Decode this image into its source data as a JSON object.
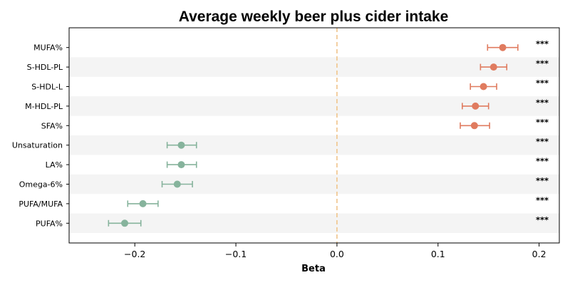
{
  "chart_data": {
    "type": "forest",
    "title": "Average weekly beer plus cider intake",
    "xlabel": "Beta",
    "ylabel": "",
    "xlim": [
      -0.265,
      0.22
    ],
    "x_ticks": [
      {
        "value": -0.2,
        "label": "−0.2"
      },
      {
        "value": -0.1,
        "label": "−0.1"
      },
      {
        "value": 0.0,
        "label": "0.0"
      },
      {
        "value": 0.1,
        "label": "0.1"
      },
      {
        "value": 0.2,
        "label": "0.2"
      }
    ],
    "reference_line": 0,
    "positive_color": "#E07B5F",
    "negative_color": "#86B39C",
    "reference_color": "#F0C48A",
    "band_color": "#F4F4F4",
    "rows": [
      {
        "label": "MUFA%",
        "beta": 0.164,
        "ci_low": 0.149,
        "ci_high": 0.179,
        "sig": "***"
      },
      {
        "label": "S-HDL-PL",
        "beta": 0.155,
        "ci_low": 0.142,
        "ci_high": 0.168,
        "sig": "***"
      },
      {
        "label": "S-HDL-L",
        "beta": 0.145,
        "ci_low": 0.132,
        "ci_high": 0.158,
        "sig": "***"
      },
      {
        "label": "M-HDL-PL",
        "beta": 0.137,
        "ci_low": 0.124,
        "ci_high": 0.15,
        "sig": "***"
      },
      {
        "label": "SFA%",
        "beta": 0.136,
        "ci_low": 0.122,
        "ci_high": 0.151,
        "sig": "***"
      },
      {
        "label": "Unsaturation",
        "beta": -0.154,
        "ci_low": -0.168,
        "ci_high": -0.139,
        "sig": "***"
      },
      {
        "label": "LA%",
        "beta": -0.154,
        "ci_low": -0.168,
        "ci_high": -0.139,
        "sig": "***"
      },
      {
        "label": "Omega-6%",
        "beta": -0.158,
        "ci_low": -0.173,
        "ci_high": -0.143,
        "sig": "***"
      },
      {
        "label": "PUFA/MUFA",
        "beta": -0.192,
        "ci_low": -0.207,
        "ci_high": -0.177,
        "sig": "***"
      },
      {
        "label": "PUFA%",
        "beta": -0.21,
        "ci_low": -0.226,
        "ci_high": -0.194,
        "sig": "***"
      }
    ]
  }
}
